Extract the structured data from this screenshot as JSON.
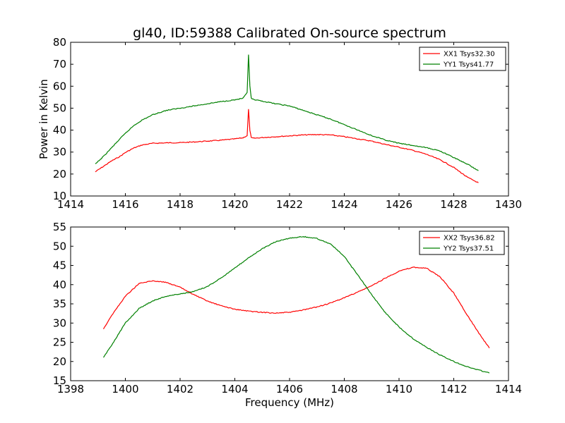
{
  "title": "gl40, ID:59388 Calibrated On-source spectrum",
  "chart_data": [
    {
      "type": "line",
      "ylabel": "Power in Kelvin",
      "xlabel": "",
      "xlim": [
        1414,
        1430
      ],
      "ylim": [
        10,
        80
      ],
      "xticks": [
        1414,
        1416,
        1418,
        1420,
        1422,
        1424,
        1426,
        1428,
        1430
      ],
      "yticks": [
        10,
        20,
        30,
        40,
        50,
        60,
        70,
        80
      ],
      "legend_position": "top-right",
      "series": [
        {
          "name": "XX1 Tsys32.30",
          "color": "#ff0000",
          "x": [
            1414.9,
            1415.2,
            1415.5,
            1415.8,
            1416.0,
            1416.3,
            1416.6,
            1417.0,
            1417.5,
            1418.0,
            1418.5,
            1419.0,
            1419.5,
            1420.0,
            1420.3,
            1420.45,
            1420.5,
            1420.55,
            1420.6,
            1420.7,
            1421.0,
            1421.5,
            1422.0,
            1422.5,
            1423.0,
            1423.5,
            1424.0,
            1424.5,
            1425.0,
            1425.5,
            1426.0,
            1426.5,
            1427.0,
            1427.5,
            1428.0,
            1428.5,
            1428.9
          ],
          "values": [
            21,
            23.5,
            26,
            28,
            29.8,
            31.8,
            33.2,
            34,
            34.2,
            34.3,
            34.6,
            35,
            35.4,
            36,
            36.5,
            37.5,
            49.5,
            40,
            36.5,
            36.3,
            36.6,
            37,
            37.4,
            37.8,
            38,
            37.8,
            37,
            36,
            35,
            33.5,
            32.2,
            30.8,
            29,
            26.5,
            23,
            18.5,
            16
          ]
        },
        {
          "name": "YY1 Tsys41.77",
          "color": "#008000",
          "x": [
            1414.9,
            1415.2,
            1415.5,
            1415.8,
            1416.0,
            1416.3,
            1416.6,
            1417.0,
            1417.5,
            1418.0,
            1418.5,
            1419.0,
            1419.5,
            1420.0,
            1420.3,
            1420.45,
            1420.5,
            1420.55,
            1420.6,
            1420.7,
            1421.0,
            1421.5,
            1422.0,
            1422.5,
            1423.0,
            1423.5,
            1424.0,
            1424.5,
            1425.0,
            1425.5,
            1426.0,
            1426.5,
            1427.0,
            1427.5,
            1428.0,
            1428.5,
            1428.9
          ],
          "values": [
            24.5,
            28,
            32,
            36,
            38.5,
            42,
            44.5,
            47,
            49,
            50,
            51,
            52,
            53,
            53.8,
            54.5,
            57,
            74.5,
            60,
            54.5,
            53.8,
            53.2,
            52,
            51,
            49,
            47,
            45,
            42.5,
            40,
            37.5,
            35.5,
            34,
            33,
            32,
            30.5,
            27.5,
            24.5,
            21.5
          ]
        }
      ]
    },
    {
      "type": "line",
      "ylabel": "",
      "xlabel": "Frequency (MHz)",
      "xlim": [
        1398,
        1414
      ],
      "ylim": [
        15,
        55
      ],
      "xticks": [
        1398,
        1400,
        1402,
        1404,
        1406,
        1408,
        1410,
        1412,
        1414
      ],
      "yticks": [
        15,
        20,
        25,
        30,
        35,
        40,
        45,
        50,
        55
      ],
      "legend_position": "top-right",
      "series": [
        {
          "name": "XX2 Tsys36.82",
          "color": "#ff0000",
          "x": [
            1399.2,
            1399.5,
            1400.0,
            1400.5,
            1401.0,
            1401.5,
            1402.0,
            1402.5,
            1403.0,
            1403.5,
            1404.0,
            1404.5,
            1405.0,
            1405.5,
            1406.0,
            1406.5,
            1407.0,
            1407.5,
            1408.0,
            1408.5,
            1409.0,
            1409.5,
            1410.0,
            1410.5,
            1411.0,
            1411.5,
            1412.0,
            1412.5,
            1413.0,
            1413.3
          ],
          "values": [
            28.5,
            32,
            37,
            40.3,
            41,
            40.6,
            39.3,
            37.4,
            35.7,
            34.5,
            33.6,
            33.1,
            32.8,
            32.6,
            32.8,
            33.4,
            34.2,
            35.2,
            36.6,
            38.1,
            39.7,
            41.7,
            43.5,
            44.5,
            44.3,
            42,
            37.8,
            32,
            26.5,
            23.5
          ]
        },
        {
          "name": "YY2 Tsys37.51",
          "color": "#008000",
          "x": [
            1399.2,
            1399.5,
            1400.0,
            1400.5,
            1401.0,
            1401.5,
            1402.0,
            1402.5,
            1403.0,
            1403.5,
            1404.0,
            1404.5,
            1405.0,
            1405.5,
            1406.0,
            1406.5,
            1407.0,
            1407.5,
            1408.0,
            1408.5,
            1409.0,
            1409.5,
            1410.0,
            1410.5,
            1411.0,
            1411.5,
            1412.0,
            1412.5,
            1413.0,
            1413.3
          ],
          "values": [
            21,
            24.3,
            30,
            33.8,
            35.8,
            37,
            37.6,
            38.2,
            39.5,
            41.8,
            44.3,
            47,
            49.3,
            51.2,
            52.1,
            52.5,
            52,
            50.6,
            47.3,
            42.4,
            37.4,
            32.7,
            29,
            26,
            23.7,
            21.7,
            20,
            18.6,
            17.6,
            17
          ]
        }
      ]
    }
  ]
}
